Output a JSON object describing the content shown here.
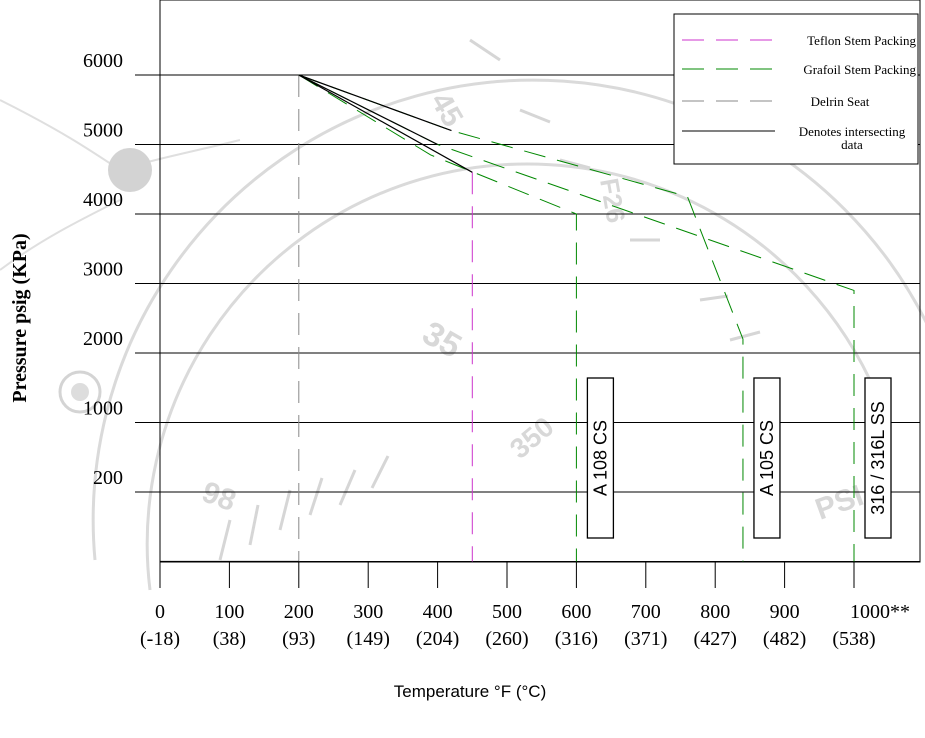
{
  "chart_data": {
    "type": "line",
    "ylabel": "Pressure psig (KPa)",
    "xlabel": "Temperature °F (°C)",
    "xlim": [
      0,
      1000
    ],
    "y_gridlines": [
      {
        "label": "6000",
        "value": 6000
      },
      {
        "label": "5000",
        "value": 5000
      },
      {
        "label": "4000",
        "value": 4000
      },
      {
        "label": "3000",
        "value": 3000
      },
      {
        "label": "2000",
        "value": 2000
      },
      {
        "label": "1000",
        "value": 1000
      },
      {
        "label": "200",
        "value": 0
      },
      {
        "label": "",
        "value": -1000
      }
    ],
    "x_ticks": [
      {
        "value": 0,
        "label": "0",
        "sublabel": "(-18)"
      },
      {
        "value": 100,
        "label": "100",
        "sublabel": "(38)"
      },
      {
        "value": 200,
        "label": "200",
        "sublabel": "(93)"
      },
      {
        "value": 300,
        "label": "300",
        "sublabel": "(149)"
      },
      {
        "value": 400,
        "label": "400",
        "sublabel": "(204)"
      },
      {
        "value": 500,
        "label": "500",
        "sublabel": "(260)"
      },
      {
        "value": 600,
        "label": "600",
        "sublabel": "(316)"
      },
      {
        "value": 700,
        "label": "700",
        "sublabel": "(371)"
      },
      {
        "value": 800,
        "label": "800",
        "sublabel": "(427)"
      },
      {
        "value": 900,
        "label": "900",
        "sublabel": "(482)"
      },
      {
        "value": 1000,
        "label": "1000**",
        "sublabel": "(538)"
      }
    ],
    "series": [
      {
        "name": "Teflon Stem Packing",
        "color": "#cc33cc",
        "style": "dashed",
        "points": [
          [
            450,
            4600
          ],
          [
            450,
            -1000
          ]
        ]
      },
      {
        "name": "Grafoil Stem Packing",
        "color": "#008800",
        "style": "dashed",
        "points": [
          [
            200,
            6000
          ],
          [
            420,
            5200
          ],
          [
            760,
            4250
          ],
          [
            840,
            2200
          ],
          [
            840,
            -1000
          ]
        ]
      },
      {
        "name": "Grafoil Stem Packing",
        "color": "#008800",
        "style": "dashed",
        "points": [
          [
            200,
            6000
          ],
          [
            400,
            5000
          ],
          [
            1000,
            2900
          ],
          [
            1000,
            -1000
          ]
        ]
      },
      {
        "name": "Grafoil Stem Packing",
        "color": "#008800",
        "style": "dashed",
        "points": [
          [
            200,
            6000
          ],
          [
            390,
            4850
          ],
          [
            600,
            4000
          ],
          [
            600,
            -1000
          ]
        ]
      },
      {
        "name": "Delrin Seat",
        "color": "#888888",
        "style": "dashed",
        "points": [
          [
            200,
            6000
          ],
          [
            200,
            -1000
          ]
        ]
      },
      {
        "name": "Denotes intersecting data",
        "color": "#000000",
        "style": "solid",
        "points": [
          [
            0,
            -1000
          ],
          [
            200,
            -1000
          ]
        ]
      },
      {
        "name": "Denotes intersecting data",
        "color": "#000000",
        "style": "solid",
        "points": [
          [
            200,
            6000
          ],
          [
            450,
            4600
          ]
        ]
      },
      {
        "name": "Denotes intersecting data",
        "color": "#000000",
        "style": "solid",
        "points": [
          [
            200,
            6000
          ],
          [
            400,
            5000
          ]
        ]
      },
      {
        "name": "Denotes intersecting data",
        "color": "#000000",
        "style": "solid",
        "points": [
          [
            200,
            6000
          ],
          [
            420,
            5200
          ]
        ]
      }
    ],
    "legend": {
      "position": "top-right",
      "entries": [
        {
          "label": "Teflon Stem Packing",
          "color": "#cc33cc",
          "style": "dashed"
        },
        {
          "label": "Grafoil Stem Packing",
          "color": "#008800",
          "style": "dashed"
        },
        {
          "label": "Delrin Seat",
          "color": "#888888",
          "style": "dashed"
        },
        {
          "label": "Denotes intersecting data",
          "color": "#000000",
          "style": "solid"
        }
      ]
    },
    "material_labels": [
      {
        "text": "A 108 CS",
        "x": 600
      },
      {
        "text": "A 105 CS",
        "x": 840
      },
      {
        "text": "316 / 316L SS",
        "x": 1000
      }
    ]
  }
}
